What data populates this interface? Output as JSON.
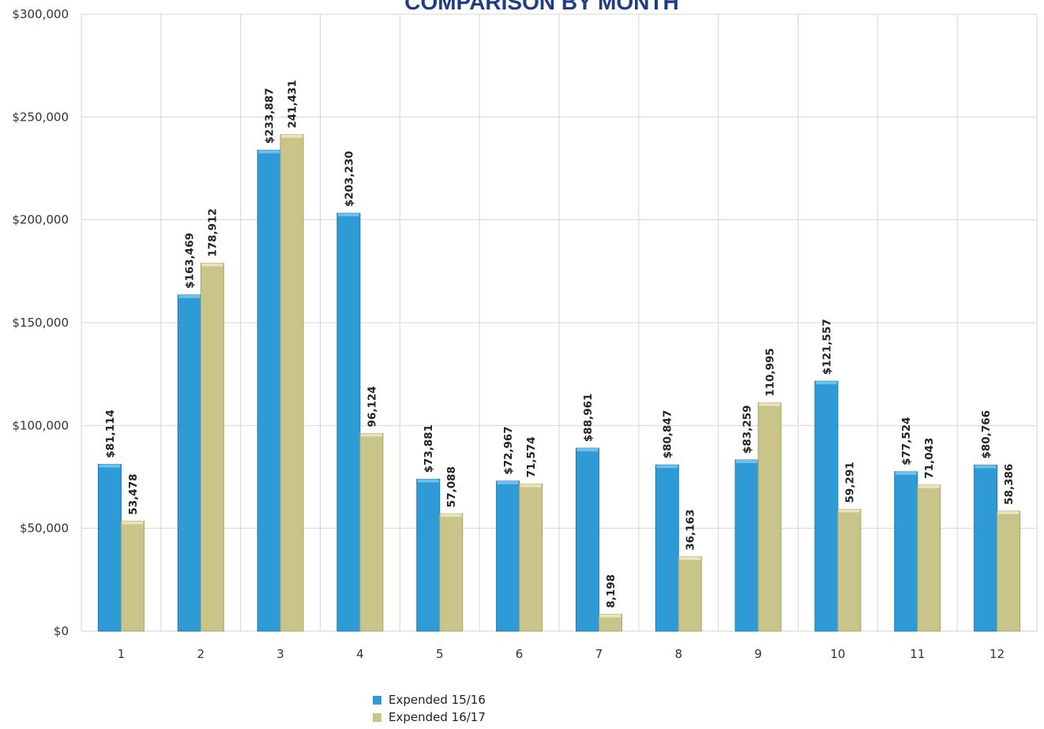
{
  "chart_data": {
    "type": "bar",
    "title": "COMPARISON BY MONTH",
    "xlabel": "",
    "ylabel": "",
    "categories": [
      "1",
      "2",
      "3",
      "4",
      "5",
      "6",
      "7",
      "8",
      "9",
      "10",
      "11",
      "12"
    ],
    "series": [
      {
        "name": "Expended 15/16",
        "color": "#2e9ad6",
        "values": [
          81114,
          163469,
          233887,
          203230,
          73881,
          72967,
          88961,
          80847,
          83259,
          121557,
          77524,
          80766
        ],
        "labels": [
          "$81,114",
          "$163,469",
          "$233,887",
          "$203,230",
          "$73,881",
          "$72,967",
          "$88,961",
          "$80,847",
          "$83,259",
          "$121,557",
          "$77,524",
          "$80,766"
        ]
      },
      {
        "name": "Expended 16/17",
        "color": "#c8c48a",
        "values": [
          53478,
          178912,
          241431,
          96124,
          57088,
          71574,
          8198,
          36163,
          110995,
          59291,
          71043,
          58386
        ],
        "labels": [
          "53,478",
          "178,912",
          "241,431",
          "96,124",
          "57,088",
          "71,574",
          "8,198",
          "36,163",
          "110,995",
          "59,291",
          "71,043",
          "58,386"
        ]
      }
    ],
    "ylim": [
      0,
      300000
    ],
    "yticks": [
      "$0",
      "$50,000",
      "$100,000",
      "$150,000",
      "$200,000",
      "$250,000",
      "$300,000"
    ],
    "ytick_values": [
      0,
      50000,
      100000,
      150000,
      200000,
      250000,
      300000
    ],
    "grid": true,
    "legend_position": "bottom"
  }
}
